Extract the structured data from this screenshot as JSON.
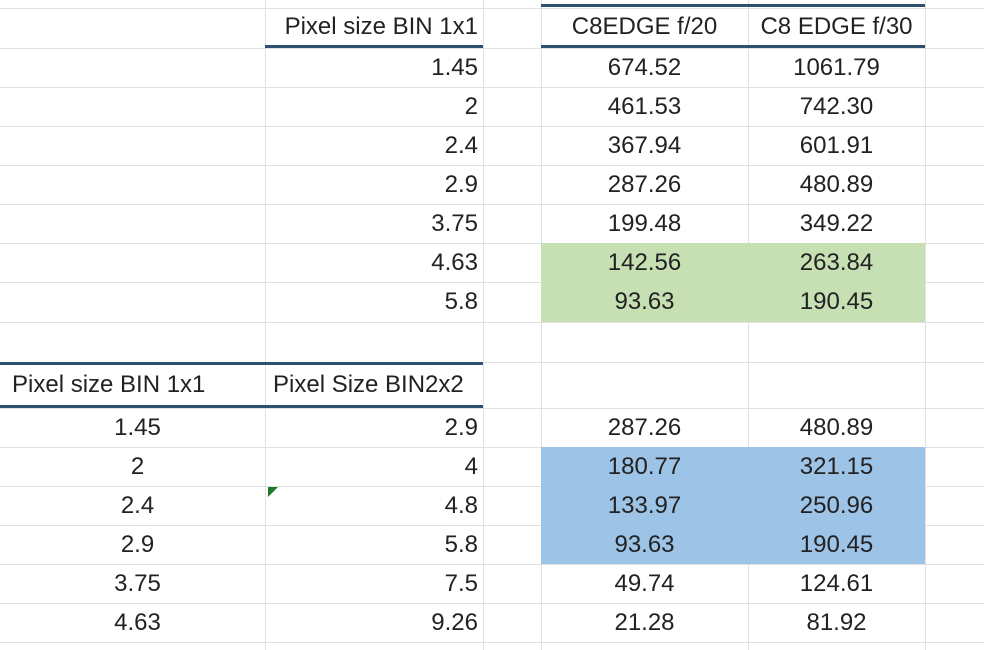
{
  "top_table": {
    "headers": [
      "Pixel size BIN 1x1",
      "C8EDGE f/20",
      "C8 EDGE f/30"
    ],
    "rows": [
      [
        "1.45",
        "674.52",
        "1061.79"
      ],
      [
        "2",
        "461.53",
        "742.30"
      ],
      [
        "2.4",
        "367.94",
        "601.91"
      ],
      [
        "2.9",
        "287.26",
        "480.89"
      ],
      [
        "3.75",
        "199.48",
        "349.22"
      ],
      [
        "4.63",
        "142.56",
        "263.84"
      ],
      [
        "5.8",
        "93.63",
        "190.45"
      ]
    ]
  },
  "bottom_table": {
    "headers": [
      "Pixel size BIN 1x1",
      "Pixel Size BIN2x2"
    ],
    "rows": [
      [
        "1.45",
        "2.9",
        "287.26",
        "480.89"
      ],
      [
        "2",
        "4",
        "180.77",
        "321.15"
      ],
      [
        "2.4",
        "4.8",
        "133.97",
        "250.96"
      ],
      [
        "2.9",
        "5.8",
        "93.63",
        "190.45"
      ],
      [
        "3.75",
        "7.5",
        "49.74",
        "124.61"
      ],
      [
        "4.63",
        "9.26",
        "21.28",
        "81.92"
      ]
    ]
  },
  "colors": {
    "green_fill": "#c6e0b4",
    "blue_fill": "#9dc3e6",
    "header_border": "#2f4f6f"
  }
}
